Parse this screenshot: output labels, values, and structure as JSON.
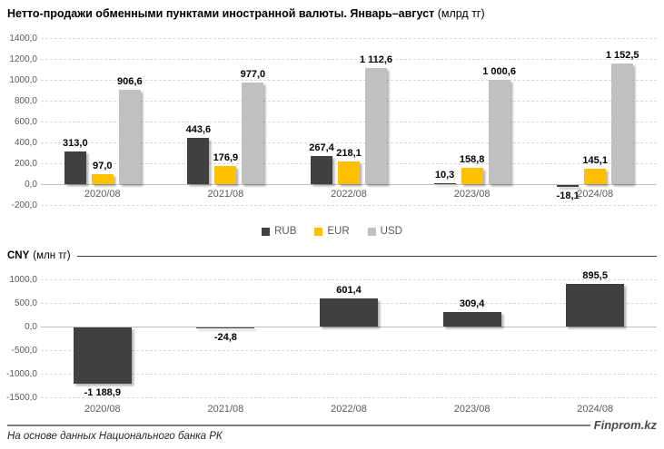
{
  "header": {
    "title": "Нетто-продажи обменными пунктами иностранной валюты. Январь–август",
    "title_unit": "(млрд тг)"
  },
  "legend": {
    "items": [
      {
        "label": "RUB",
        "color": "#404040"
      },
      {
        "label": "EUR",
        "color": "#FFC000"
      },
      {
        "label": "USD",
        "color": "#C0C0C0"
      }
    ]
  },
  "cny_header": {
    "title": "CNY",
    "unit": "(млн тг)"
  },
  "footer": {
    "brand": "Finprom.kz",
    "source": "На основе данных Национального банка РК"
  },
  "chart_data": [
    {
      "type": "bar",
      "title": "Нетто-продажи обменными пунктами иностранной валюты. Январь–август",
      "unit": "млрд тг",
      "categories": [
        "2020/08",
        "2021/08",
        "2022/08",
        "2023/08",
        "2024/08"
      ],
      "series": [
        {
          "name": "RUB",
          "color": "#404040",
          "values": [
            313.0,
            443.6,
            267.4,
            10.3,
            -18.1
          ],
          "labels": [
            "313,0",
            "443,6",
            "267,4",
            "10,3",
            "-18,1"
          ]
        },
        {
          "name": "EUR",
          "color": "#FFC000",
          "values": [
            97.0,
            176.9,
            218.1,
            158.8,
            145.1
          ],
          "labels": [
            "97,0",
            "176,9",
            "218,1",
            "158,8",
            "145,1"
          ]
        },
        {
          "name": "USD",
          "color": "#C0C0C0",
          "values": [
            906.6,
            977.0,
            1112.6,
            1000.6,
            1152.5
          ],
          "labels": [
            "906,6",
            "977,0",
            "1 112,6",
            "1 000,6",
            "1 152,5"
          ]
        }
      ],
      "ylim": [
        -200,
        1400
      ],
      "ytick_step": 200,
      "ytick_labels": [
        "1400,0",
        "1200,0",
        "1000,0",
        "800,0",
        "600,0",
        "400,0",
        "200,0",
        "0,0",
        "-200,0"
      ],
      "grid": true,
      "legend_position": "bottom-center"
    },
    {
      "type": "bar",
      "title": "CNY",
      "unit": "млн тг",
      "categories": [
        "2020/08",
        "2021/08",
        "2022/08",
        "2023/08",
        "2024/08"
      ],
      "series": [
        {
          "name": "CNY",
          "color": "#404040",
          "values": [
            -1188.9,
            -24.8,
            601.4,
            309.4,
            895.5
          ],
          "labels": [
            "-1 188,9",
            "-24,8",
            "601,4",
            "309,4",
            "895,5"
          ]
        }
      ],
      "ylim": [
        -1500,
        1000
      ],
      "ytick_step": 500,
      "ytick_labels": [
        "1000,0",
        "500,0",
        "0,0",
        "-500,0",
        "-1000,0",
        "-1500,0"
      ],
      "grid": true,
      "legend_position": "none"
    }
  ]
}
